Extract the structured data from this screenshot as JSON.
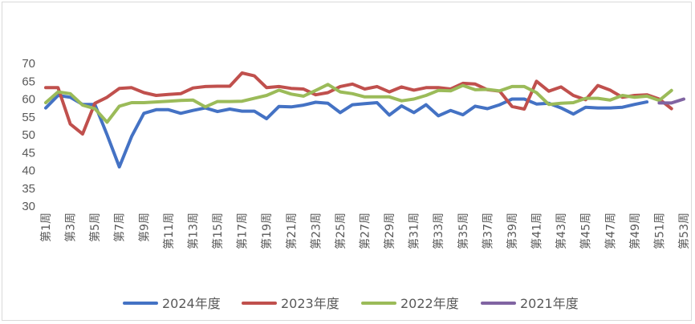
{
  "chart_data": {
    "type": "line",
    "title": "",
    "xlabel": "",
    "ylabel": "",
    "ylim": [
      30,
      70
    ],
    "yticks": [
      30,
      35,
      40,
      45,
      50,
      55,
      60,
      65,
      70
    ],
    "grid": false,
    "legend_position": "bottom",
    "x_tick_labels": [
      "第1周",
      "第3周",
      "第5周",
      "第7周",
      "第9周",
      "第11周",
      "第13周",
      "第15周",
      "第17周",
      "第19周",
      "第21周",
      "第23周",
      "第25周",
      "第27周",
      "第29周",
      "第31周",
      "第33周",
      "第35周",
      "第37周",
      "第39周",
      "第41周",
      "第43周",
      "第45周",
      "第47周",
      "第49周",
      "第51周",
      "第53周"
    ],
    "x": [
      1,
      2,
      3,
      4,
      5,
      6,
      7,
      8,
      9,
      10,
      11,
      12,
      13,
      14,
      15,
      16,
      17,
      18,
      19,
      20,
      21,
      22,
      23,
      24,
      25,
      26,
      27,
      28,
      29,
      30,
      31,
      32,
      33,
      34,
      35,
      36,
      37,
      38,
      39,
      40,
      41,
      42,
      43,
      44,
      45,
      46,
      47,
      48,
      49,
      50,
      51,
      52,
      53
    ],
    "series": [
      {
        "name": "2024年度",
        "color": "#4472c4",
        "x": [
          1,
          2,
          3,
          4,
          5,
          6,
          7,
          8,
          9,
          10,
          11,
          12,
          13,
          14,
          15,
          16,
          17,
          18,
          19,
          20,
          21,
          22,
          23,
          24,
          25,
          26,
          27,
          28,
          29,
          30,
          31,
          32,
          33,
          34,
          35,
          36,
          37,
          38,
          39,
          40,
          41,
          42,
          43,
          44,
          45,
          46,
          47,
          48,
          49,
          50
        ],
        "values": [
          57.5,
          61,
          60.5,
          58.5,
          58.5,
          50,
          41,
          49.5,
          56,
          57,
          57,
          56,
          56.8,
          57.5,
          56.5,
          57.2,
          56.6,
          56.6,
          54.5,
          57.9,
          57.8,
          58.3,
          59.1,
          58.8,
          56.2,
          58.4,
          58.7,
          59,
          55.5,
          58.1,
          56.2,
          58.4,
          55.3,
          56.8,
          55.6,
          58,
          57.3,
          58.4,
          60,
          60,
          58.6,
          58.8,
          57.5,
          55.8,
          57.7,
          57.5,
          57.5,
          57.7,
          58.5,
          59.2
        ]
      },
      {
        "name": "2023年度",
        "color": "#c0504d",
        "x": [
          1,
          2,
          3,
          4,
          5,
          6,
          7,
          8,
          9,
          10,
          11,
          12,
          13,
          14,
          15,
          16,
          17,
          18,
          19,
          20,
          21,
          22,
          23,
          24,
          25,
          26,
          27,
          28,
          29,
          30,
          31,
          32,
          33,
          34,
          35,
          36,
          37,
          38,
          39,
          40,
          41,
          42,
          43,
          44,
          45,
          46,
          47,
          48,
          49,
          50,
          51,
          52
        ],
        "values": [
          63.2,
          63.2,
          53,
          50.2,
          58.8,
          60.5,
          63,
          63.2,
          61.8,
          61,
          61.3,
          61.5,
          63.1,
          63.5,
          63.6,
          63.6,
          67.3,
          66.5,
          63.2,
          63.5,
          63,
          62.8,
          61.2,
          61.8,
          63.5,
          64.2,
          62.8,
          63.5,
          62,
          63.4,
          62.5,
          63.2,
          63.2,
          62.8,
          64.4,
          64.2,
          62.6,
          62.2,
          57.9,
          57.2,
          65,
          62.2,
          63.4,
          61,
          59.8,
          63.8,
          62.5,
          60.5,
          61,
          61.2,
          60,
          57.3
        ]
      },
      {
        "name": "2022年度",
        "color": "#9bbb59",
        "x": [
          1,
          2,
          3,
          4,
          5,
          6,
          7,
          8,
          9,
          10,
          11,
          12,
          13,
          14,
          15,
          16,
          17,
          18,
          19,
          20,
          21,
          22,
          23,
          24,
          25,
          26,
          27,
          28,
          29,
          30,
          31,
          32,
          33,
          34,
          35,
          36,
          37,
          38,
          39,
          40,
          41,
          42,
          43,
          44,
          45,
          46,
          47,
          48,
          49,
          50,
          51,
          52,
          53
        ],
        "values": [
          59,
          62,
          61.5,
          58.3,
          57.3,
          53.5,
          58,
          59,
          59,
          59.2,
          59.4,
          59.6,
          59.7,
          57.8,
          59.3,
          59.3,
          59.4,
          60.2,
          61,
          62.5,
          61.4,
          60.8,
          62.4,
          64.1,
          62,
          61.5,
          60.6,
          60.6,
          60.6,
          59.5,
          60,
          61,
          62.4,
          62.3,
          63.8,
          62.6,
          62.7,
          62.3,
          63.5,
          63.5,
          61.8,
          58.5,
          58.8,
          59,
          60.2,
          60.2,
          59.7,
          61,
          60.5,
          60.8,
          59.6,
          62.4,
          null
        ]
      },
      {
        "name": "2021年度",
        "color": "#8064a2",
        "x": [
          51,
          52,
          53
        ],
        "values": [
          58.9,
          58.9,
          60
        ]
      }
    ]
  }
}
